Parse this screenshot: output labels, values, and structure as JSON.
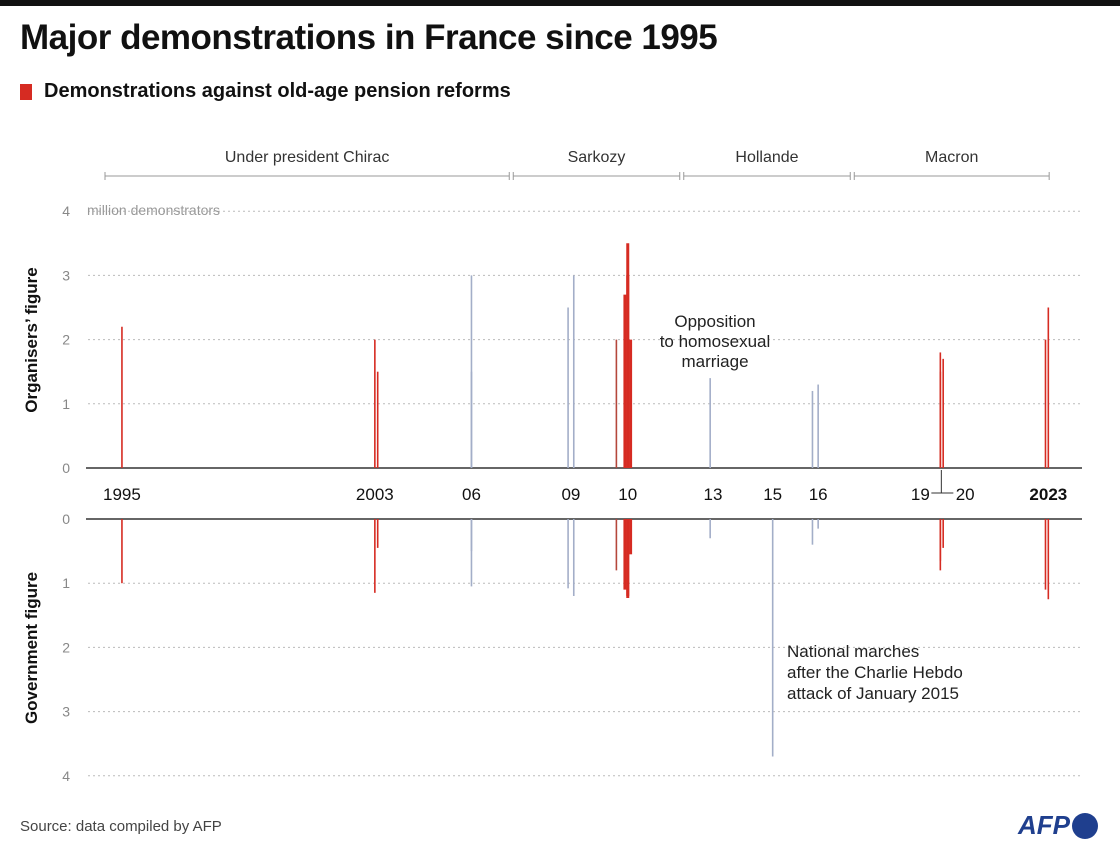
{
  "title": "Major demonstrations in France since 1995",
  "legend_label": "Demonstrations against old-age pension reforms",
  "colors": {
    "pension": "#d62b22",
    "pension_dark": "#b5473c",
    "other": "#a3aec8",
    "axis": "#333",
    "grid": "#bbb"
  },
  "periods": [
    {
      "label": "Under president Chirac",
      "from": "1995-05",
      "to": "2007-05"
    },
    {
      "label": "Sarkozy",
      "from": "2007-05",
      "to": "2012-05"
    },
    {
      "label": "Hollande",
      "from": "2012-05",
      "to": "2017-05"
    },
    {
      "label": "Macron",
      "from": "2017-05",
      "to": "2023-03"
    }
  ],
  "source": "Source: data compiled by AFP",
  "logo": "AFP",
  "chart_data": [
    {
      "type": "bar",
      "panel": "top",
      "ylabel": "Organisers’ figure",
      "unit_label": "million demonstrators",
      "ylim": [
        0,
        4
      ],
      "yticks": [
        0,
        1,
        2,
        3,
        4
      ],
      "grid": true
    },
    {
      "type": "bar",
      "panel": "bottom",
      "ylabel": "Government figure",
      "ylim": [
        0,
        4
      ],
      "yticks": [
        0,
        1,
        2,
        3,
        4
      ],
      "inverted": true,
      "grid": true
    },
    {
      "x_tick_labels": [
        {
          "label": "1995",
          "date": "1995-12"
        },
        {
          "label": "2003",
          "date": "2003-05"
        },
        {
          "label": "06",
          "date": "2006-03"
        },
        {
          "label": "09",
          "date": "2009-02"
        },
        {
          "label": "10",
          "date": "2010-10"
        },
        {
          "label": "13",
          "date": "2013-04"
        },
        {
          "label": "15",
          "date": "2015-01"
        },
        {
          "label": "16",
          "date": "2016-05"
        },
        {
          "label": "19",
          "date": "2019-12"
        },
        {
          "label": "20",
          "date": "2020-01"
        },
        {
          "label": "2023",
          "date": "2023-02",
          "bold": true
        }
      ],
      "events": [
        {
          "date": "1995-12",
          "organisers": 2.2,
          "government": 1.0,
          "pension": true
        },
        {
          "date": "2003-05",
          "organisers": 2.0,
          "government": 1.15,
          "pension": true
        },
        {
          "date": "2003-06",
          "organisers": 1.5,
          "government": 0.45,
          "pension": true
        },
        {
          "date": "2006-03",
          "organisers": 1.5,
          "government": 0.5,
          "pension": false
        },
        {
          "date": "2006-03",
          "organisers": 3.0,
          "government": 1.05,
          "pension": false
        },
        {
          "date": "2009-01",
          "organisers": 2.5,
          "government": 1.08,
          "pension": false
        },
        {
          "date": "2009-03",
          "organisers": 3.0,
          "government": 1.2,
          "pension": false
        },
        {
          "date": "2010-06",
          "organisers": 2.0,
          "government": 0.8,
          "pension": true
        },
        {
          "date": "2010-09",
          "organisers": 2.7,
          "government": 1.1,
          "pension": true
        },
        {
          "date": "2010-10",
          "organisers": 3.0,
          "government": 1.2,
          "pension": true
        },
        {
          "date": "2010-10",
          "organisers": 3.5,
          "government": 1.23,
          "pension": true
        },
        {
          "date": "2010-11",
          "organisers": 2.0,
          "government": 0.55,
          "pension": true
        },
        {
          "date": "2013-03",
          "organisers": 1.4,
          "government": 0.3,
          "pension": false
        },
        {
          "date": "2015-01",
          "organisers": 0,
          "government": 3.7,
          "pension": false
        },
        {
          "date": "2016-03",
          "organisers": 1.2,
          "government": 0.4,
          "pension": false
        },
        {
          "date": "2016-05",
          "organisers": 1.3,
          "government": 0.15,
          "pension": false
        },
        {
          "date": "2019-12",
          "organisers": 1.5,
          "government": 0.8,
          "pension": true
        },
        {
          "date": "2019-12",
          "organisers": 1.8,
          "government": 0.65,
          "pension": true
        },
        {
          "date": "2020-01",
          "organisers": 1.7,
          "government": 0.45,
          "pension": true
        },
        {
          "date": "2023-01",
          "organisers": 2.0,
          "government": 1.1,
          "pension": true
        },
        {
          "date": "2023-02",
          "organisers": 2.5,
          "government": 1.25,
          "pension": true
        }
      ],
      "annotations": [
        {
          "text": [
            "Opposition",
            "to homosexual",
            "marriage"
          ],
          "date": "2013-03",
          "panel": "top"
        },
        {
          "text": [
            "National marches",
            "after the Charlie Hebdo",
            "attack of January 2015"
          ],
          "date": "2015-01",
          "panel": "bottom"
        }
      ]
    }
  ]
}
